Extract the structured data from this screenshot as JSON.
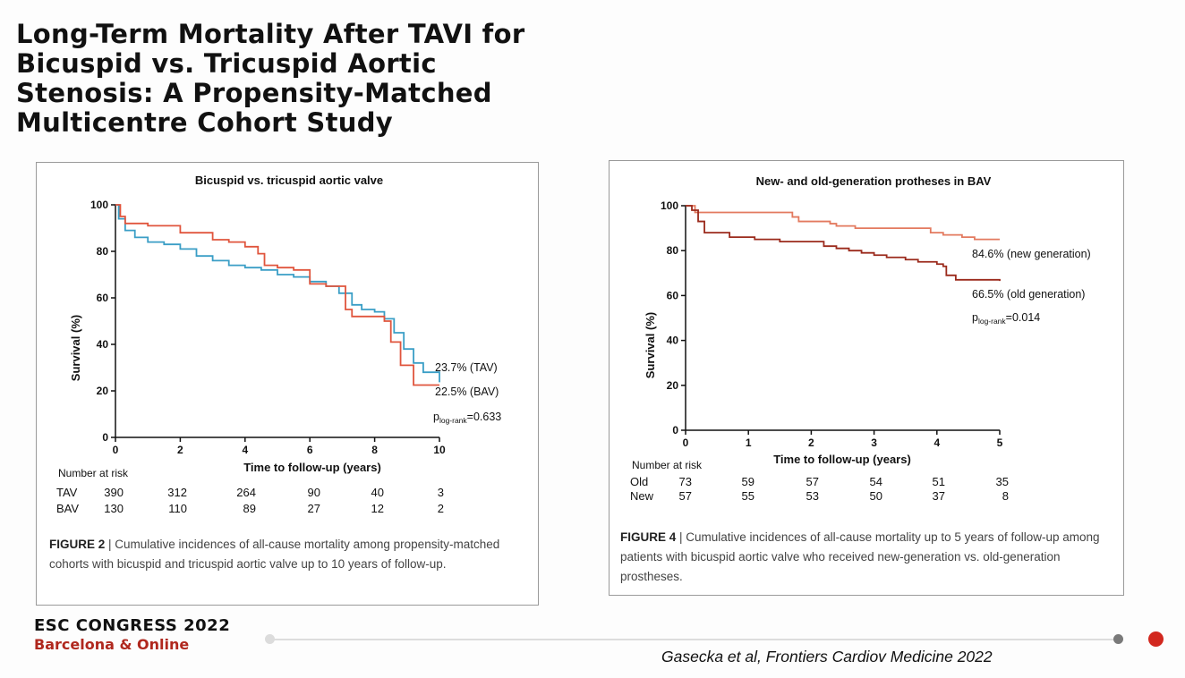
{
  "slide": {
    "title_lines": [
      "Long-Term Mortality After TAVI for",
      "Bicuspid vs. Tricuspid Aortic",
      "Stenosis: A Propensity-Matched",
      "Multicentre Cohort Study"
    ],
    "citation": "Gasecka et al, Frontiers Cardiov Medicine 2022"
  },
  "footer": {
    "line1": "ESC CONGRESS 2022",
    "line2": "Barcelona & Online",
    "colors": {
      "brand_red": "#b0281e",
      "dot_active": "#d2281f"
    }
  },
  "chart_data": [
    {
      "type": "line",
      "title": "Bicuspid vs. tricuspid aortic valve",
      "xlabel": "Time to follow-up (years)",
      "ylabel": "Survival (%)",
      "xlim": [
        0,
        10
      ],
      "ylim": [
        0,
        100
      ],
      "xticks": [
        0,
        2,
        4,
        6,
        8,
        10
      ],
      "yticks": [
        0,
        20,
        40,
        60,
        80,
        100
      ],
      "series": [
        {
          "name": "TAV",
          "color": "#3a9ec6",
          "points": [
            [
              0,
              100
            ],
            [
              0.1,
              94
            ],
            [
              0.3,
              89
            ],
            [
              0.6,
              86
            ],
            [
              1,
              84
            ],
            [
              1.5,
              83
            ],
            [
              2,
              81
            ],
            [
              2.5,
              78
            ],
            [
              3,
              76
            ],
            [
              3.5,
              74
            ],
            [
              4,
              73
            ],
            [
              4.5,
              72
            ],
            [
              5,
              70
            ],
            [
              5.5,
              69
            ],
            [
              6,
              67
            ],
            [
              6.5,
              65
            ],
            [
              6.9,
              62
            ],
            [
              7.3,
              57
            ],
            [
              7.6,
              55
            ],
            [
              8,
              54
            ],
            [
              8.3,
              51
            ],
            [
              8.6,
              45
            ],
            [
              8.9,
              38
            ],
            [
              9.2,
              32
            ],
            [
              9.5,
              28
            ],
            [
              10,
              23.7
            ]
          ]
        },
        {
          "name": "BAV",
          "color": "#e0553d",
          "points": [
            [
              0,
              100
            ],
            [
              0.15,
              95
            ],
            [
              0.3,
              92
            ],
            [
              1,
              91
            ],
            [
              2,
              88
            ],
            [
              3,
              85
            ],
            [
              3.5,
              84
            ],
            [
              4,
              82
            ],
            [
              4.4,
              79
            ],
            [
              4.6,
              74
            ],
            [
              5,
              73
            ],
            [
              5.5,
              72
            ],
            [
              6,
              66
            ],
            [
              6.5,
              65
            ],
            [
              6.9,
              65
            ],
            [
              7.1,
              55
            ],
            [
              7.3,
              52
            ],
            [
              8,
              52
            ],
            [
              8.3,
              50
            ],
            [
              8.5,
              41
            ],
            [
              8.8,
              31
            ],
            [
              9.2,
              22.5
            ],
            [
              10,
              22.5
            ]
          ]
        }
      ],
      "annotations": {
        "tav_label": "23.7% (TAV)",
        "bav_label": "22.5% (BAV)",
        "p_prefix": "p",
        "p_sub": "log-rank",
        "p_value": "=0.633"
      },
      "risk_table": {
        "header": "Number at risk",
        "rows": [
          {
            "label": "TAV",
            "values": [
              "390",
              "312",
              "264",
              "90",
              "40",
              "3"
            ]
          },
          {
            "label": "BAV",
            "values": [
              "130",
              "110",
              "89",
              "27",
              "12",
              "2"
            ]
          }
        ]
      },
      "caption_bold": "FIGURE 2",
      "caption_text": " | Cumulative incidences of all-cause mortality among propensity-matched cohorts with bicuspid and tricuspid aortic valve up to 10 years of follow-up."
    },
    {
      "type": "line",
      "title": "New- and old-generation protheses in BAV",
      "xlabel": "Time to follow-up (years)",
      "ylabel": "Survival (%)",
      "xlim": [
        0,
        5
      ],
      "ylim": [
        0,
        100
      ],
      "xticks": [
        0,
        1,
        2,
        3,
        4,
        5
      ],
      "yticks": [
        0,
        20,
        40,
        60,
        80,
        100
      ],
      "series": [
        {
          "name": "new generation",
          "color": "#e37a5f",
          "points": [
            [
              0,
              100
            ],
            [
              0.15,
              97
            ],
            [
              1,
              97
            ],
            [
              1.7,
              95
            ],
            [
              1.8,
              93
            ],
            [
              2.3,
              92
            ],
            [
              2.4,
              91
            ],
            [
              2.7,
              90
            ],
            [
              3,
              90
            ],
            [
              3.5,
              90
            ],
            [
              3.9,
              88
            ],
            [
              4.1,
              87
            ],
            [
              4.4,
              86
            ],
            [
              4.6,
              85
            ],
            [
              5,
              85
            ]
          ]
        },
        {
          "name": "old generation",
          "color": "#9b2a1c",
          "points": [
            [
              0,
              100
            ],
            [
              0.1,
              98
            ],
            [
              0.2,
              93
            ],
            [
              0.3,
              88
            ],
            [
              0.7,
              86
            ],
            [
              1.1,
              85
            ],
            [
              1.5,
              84
            ],
            [
              1.7,
              84
            ],
            [
              2.2,
              82
            ],
            [
              2.4,
              81
            ],
            [
              2.6,
              80
            ],
            [
              2.8,
              79
            ],
            [
              3,
              78
            ],
            [
              3.2,
              77
            ],
            [
              3.5,
              76
            ],
            [
              3.7,
              75
            ],
            [
              3.9,
              75
            ],
            [
              4,
              74
            ],
            [
              4.1,
              73
            ],
            [
              4.15,
              69
            ],
            [
              4.3,
              67
            ],
            [
              5,
              66.5
            ]
          ]
        }
      ],
      "annotations": {
        "new_label": "84.6% (new generation)",
        "old_label": "66.5% (old generation)",
        "p_prefix": "p",
        "p_sub": "log-rank",
        "p_value": "=0.014"
      },
      "risk_table": {
        "header": "Number at risk",
        "rows": [
          {
            "label": "Old",
            "values": [
              "73",
              "59",
              "57",
              "54",
              "51",
              "35"
            ]
          },
          {
            "label": "New",
            "values": [
              "57",
              "55",
              "53",
              "50",
              "37",
              "8"
            ]
          }
        ]
      },
      "caption_bold": "FIGURE 4",
      "caption_text": " | Cumulative incidences of all-cause mortality up to 5 years of follow-up among patients with bicuspid aortic valve who received new-generation vs. old-generation prostheses."
    }
  ]
}
